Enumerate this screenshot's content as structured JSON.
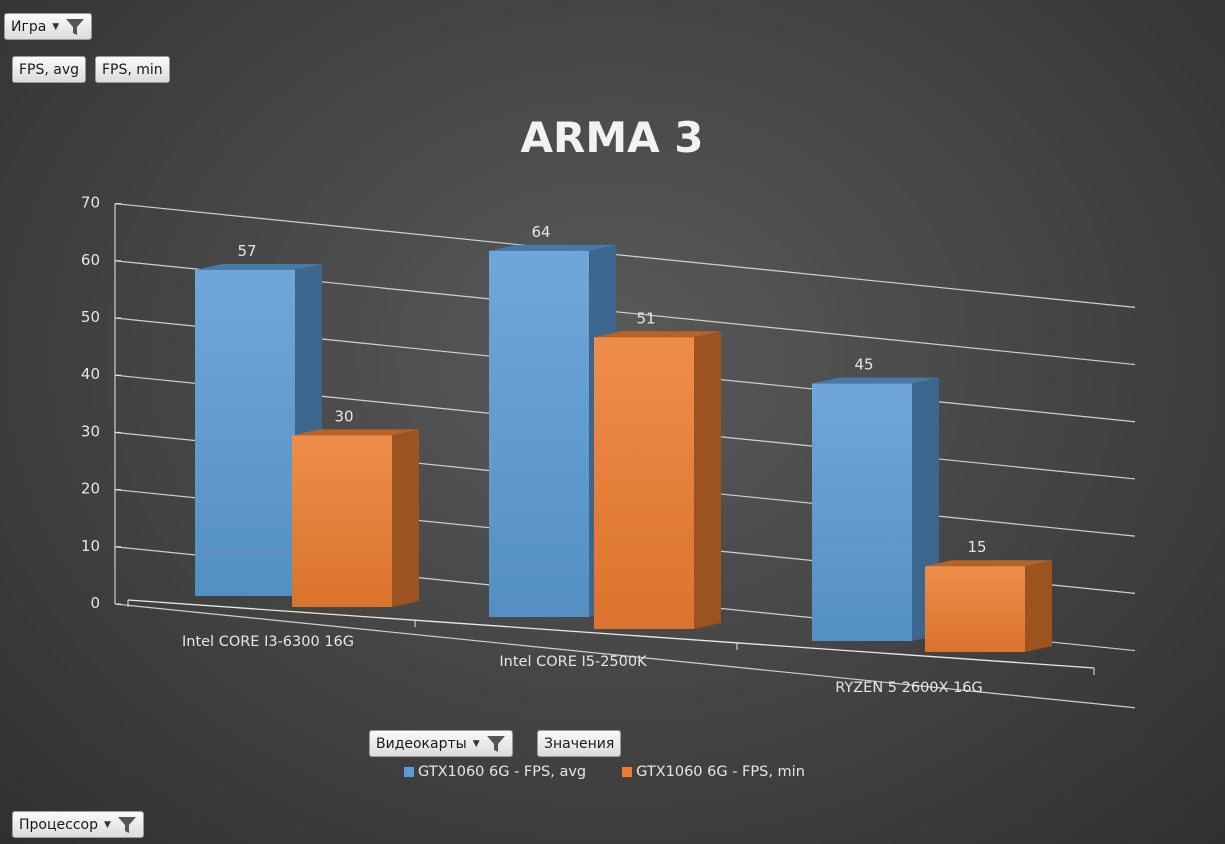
{
  "filters": {
    "game": {
      "label": "Игра"
    },
    "values_left": [
      "FPS, avg",
      "FPS, min"
    ],
    "gpu": {
      "label": "Видеокарты"
    },
    "values_label": "Значения",
    "cpu": {
      "label": "Процессор"
    }
  },
  "chart_data": {
    "type": "bar",
    "title": "ARMA 3",
    "categories": [
      "Intel CORE I3-6300 16G",
      "Intel CORE I5-2500K",
      "RYZEN 5 2600X 16G"
    ],
    "series": [
      {
        "name": "GTX1060 6G - FPS, avg",
        "values": [
          57,
          64,
          45
        ],
        "color": "#5b9bd5"
      },
      {
        "name": "GTX1060 6G - FPS, min",
        "values": [
          30,
          51,
          15
        ],
        "color": "#ed7d31"
      }
    ],
    "ylim": [
      0,
      70
    ],
    "yticks": [
      0,
      10,
      20,
      30,
      40,
      50,
      60,
      70
    ],
    "grid": true,
    "legend": "bottom",
    "data_labels": true,
    "style": "3d-clustered-column"
  }
}
